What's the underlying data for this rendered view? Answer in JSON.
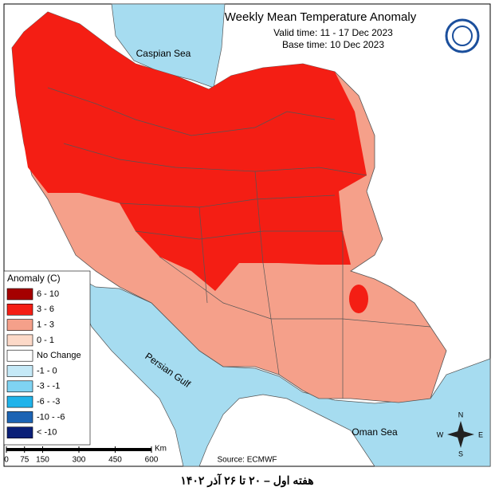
{
  "header": {
    "title": "Weekly Mean Temperature Anomaly",
    "valid_time": "Valid time: 11 - 17 Dec 2023",
    "base_time": "Base time: 10 Dec 2023"
  },
  "water_labels": {
    "caspian": "Caspian Sea",
    "gulf": "Persian Gulf",
    "oman": "Oman Sea"
  },
  "legend": {
    "title": "Anomaly (C)",
    "items": [
      {
        "label": "6 - 10",
        "color": "#a50000"
      },
      {
        "label": "3 - 6",
        "color": "#f41e14"
      },
      {
        "label": "1 - 3",
        "color": "#f5a08a"
      },
      {
        "label": "0 - 1",
        "color": "#fcd9c8"
      },
      {
        "label": "No Change",
        "color": "#ffffff"
      },
      {
        "label": "-1 - 0",
        "color": "#c5e9f7"
      },
      {
        "label": "-3 - -1",
        "color": "#7fd3f2"
      },
      {
        "label": "-6 - -3",
        "color": "#1fb3ea"
      },
      {
        "label": "-10 - -6",
        "color": "#1c64b4"
      },
      {
        "label": "< -10",
        "color": "#0a1f78"
      }
    ]
  },
  "scale_bar": {
    "ticks": [
      0,
      75,
      150,
      300,
      450,
      600
    ],
    "unit": "Km"
  },
  "source": "Source: ECMWF",
  "compass": {
    "n": "N",
    "s": "S",
    "e": "E",
    "w": "W"
  },
  "caption": "هفته اول – ۲۰ تا ۲۶ آذر ۱۴۰۲"
}
